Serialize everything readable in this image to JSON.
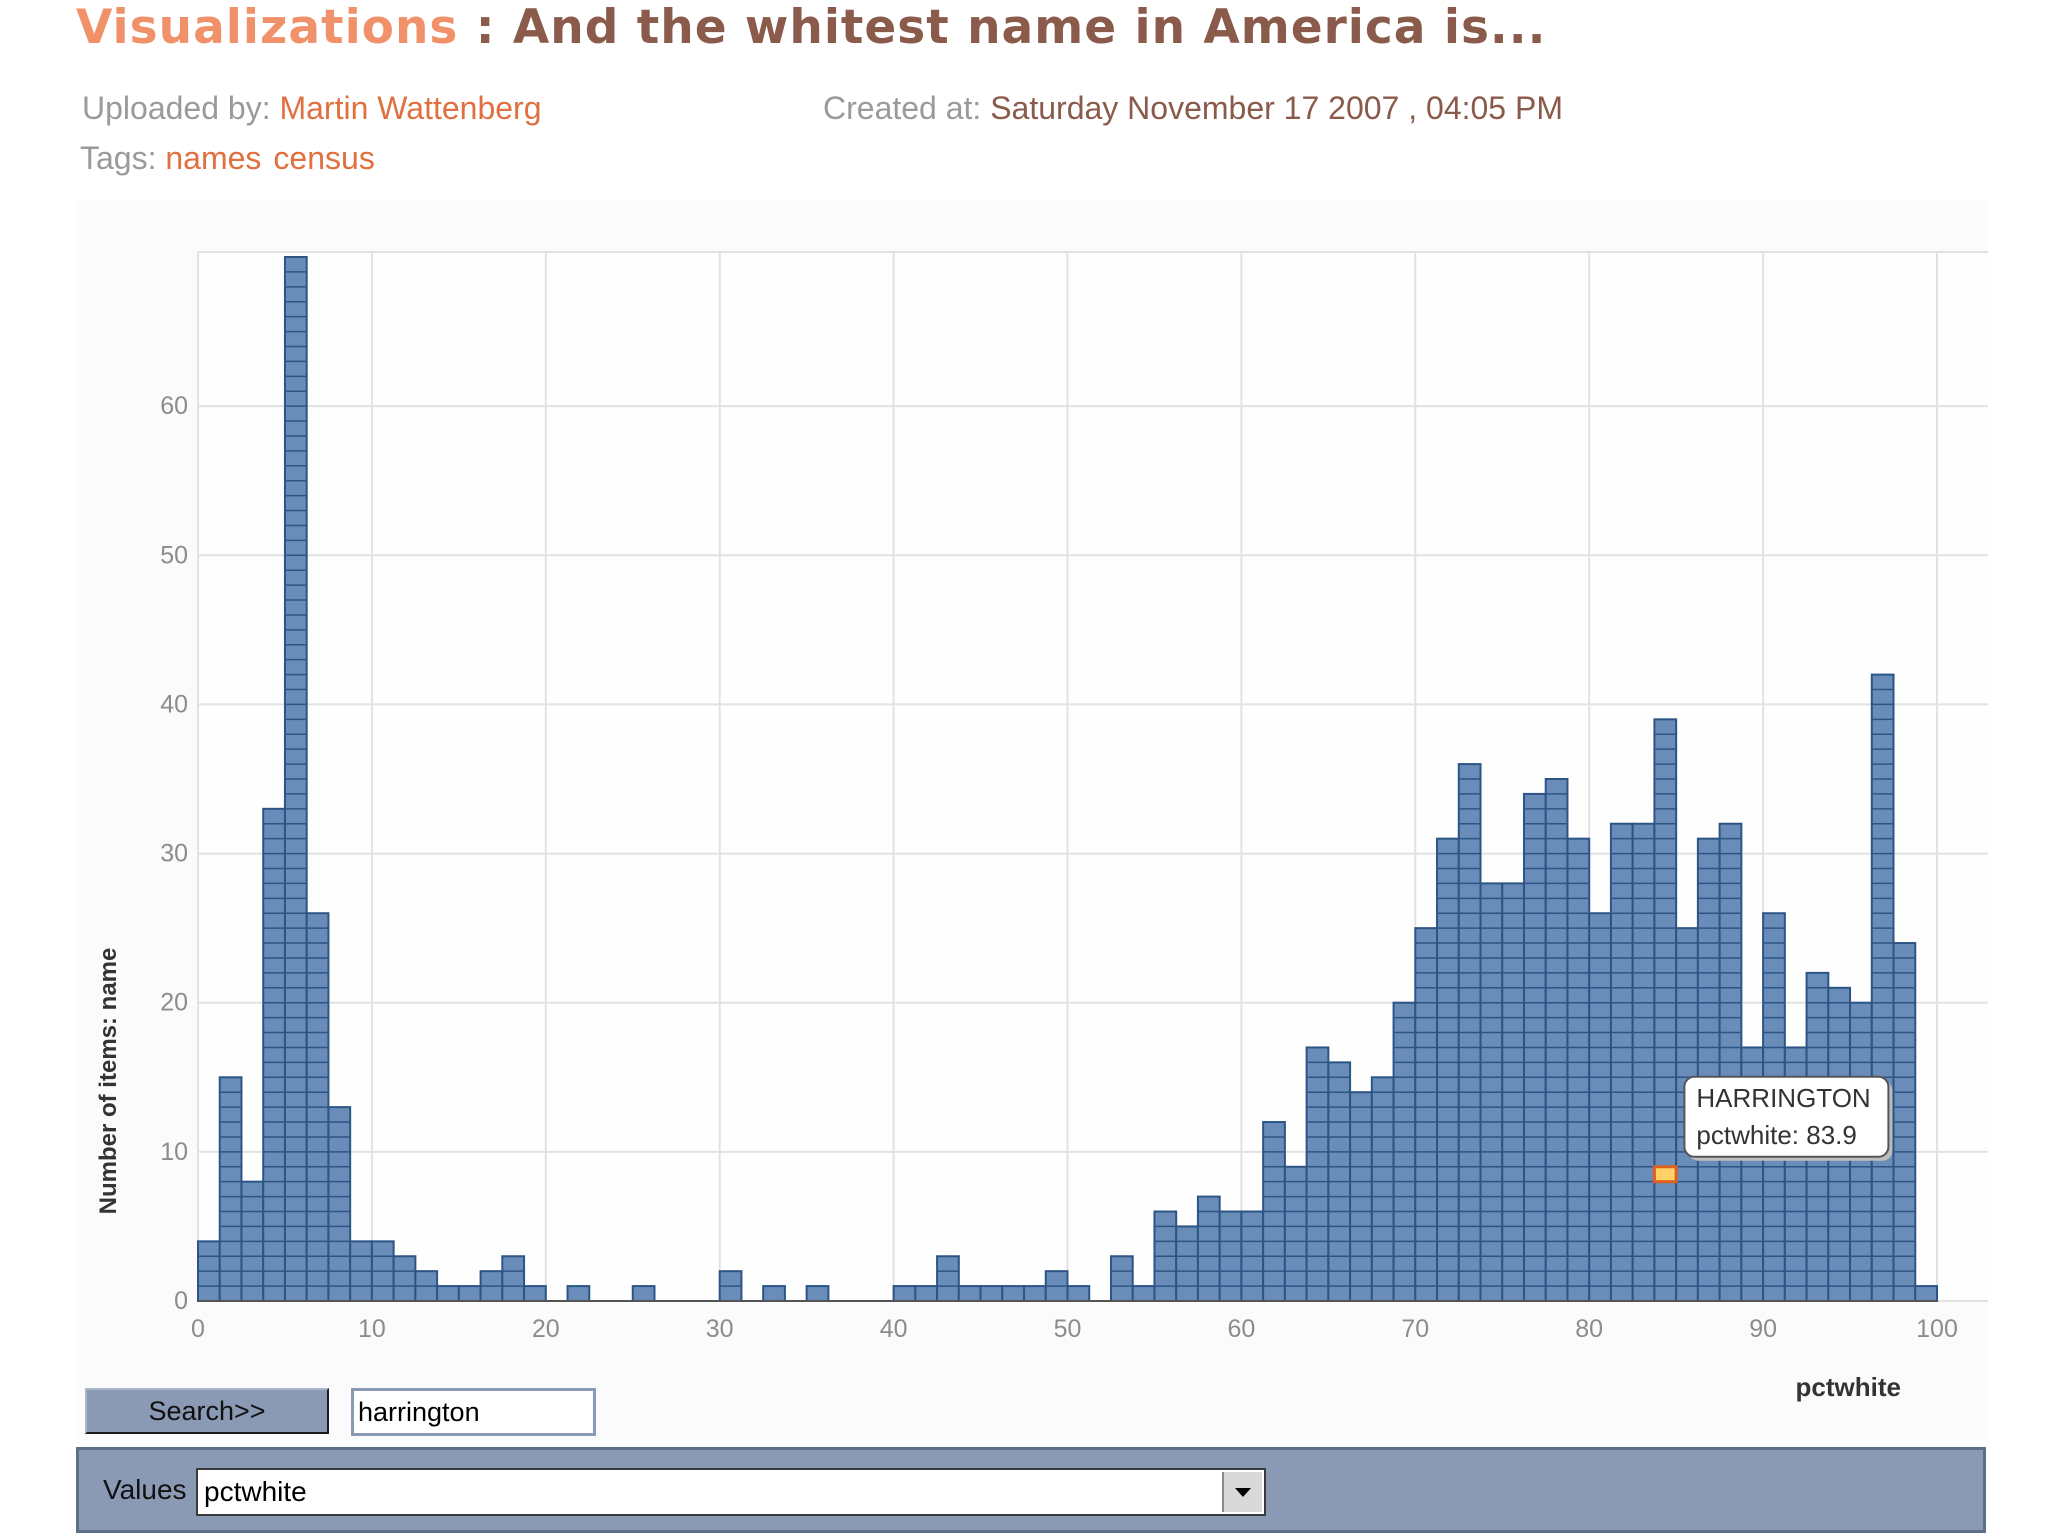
{
  "header": {
    "title_link": "Visualizations",
    "title_rest": " : And the whitest name in America is...",
    "uploaded_label": "Uploaded by:",
    "uploaded_value": "Martin Wattenberg",
    "created_label": "Created at:",
    "created_value": "Saturday November 17 2007 , 04:05 PM",
    "tags_label": "Tags:",
    "tags": [
      "names",
      "census"
    ]
  },
  "controls": {
    "search_label": "Search>>",
    "search_value": "harrington",
    "values_label": "Values",
    "values_selected": "pctwhite"
  },
  "colors": {
    "bar": "#6a8cb8",
    "bar_line": "#2c5586",
    "highlight": "#e06020",
    "highlight_fill": "#ffd166",
    "grid": "#e2e2e2",
    "axis_text": "#8c8c8c"
  },
  "chart_data": {
    "type": "bar",
    "title": "",
    "xlabel": "pctwhite",
    "ylabel": "Number of items: name",
    "xlim": [
      0,
      100
    ],
    "ylim": [
      0,
      70
    ],
    "bin_width": 1.25,
    "x_ticks": [
      0,
      10,
      20,
      30,
      40,
      50,
      60,
      70,
      80,
      90,
      100
    ],
    "y_ticks": [
      0,
      10,
      20,
      30,
      40,
      50,
      60
    ],
    "grid": true,
    "bin_starts": [
      0,
      1.25,
      2.5,
      3.75,
      5,
      6.25,
      7.5,
      8.75,
      10,
      11.25,
      12.5,
      13.75,
      15,
      16.25,
      17.5,
      18.75,
      20,
      21.25,
      22.5,
      23.75,
      25,
      26.25,
      27.5,
      28.75,
      30,
      31.25,
      32.5,
      33.75,
      35,
      36.25,
      37.5,
      38.75,
      40,
      41.25,
      42.5,
      43.75,
      45,
      46.25,
      47.5,
      48.75,
      50,
      51.25,
      52.5,
      53.75,
      55,
      56.25,
      57.5,
      58.75,
      60,
      61.25,
      62.5,
      63.75,
      65,
      66.25,
      67.5,
      68.75,
      70,
      71.25,
      72.5,
      73.75,
      75,
      76.25,
      77.5,
      78.75,
      80,
      81.25,
      82.5,
      83.75,
      85,
      86.25,
      87.5,
      88.75,
      90,
      91.25,
      92.5,
      93.75,
      95,
      96.25,
      97.5,
      98.75
    ],
    "values": [
      4,
      15,
      8,
      33,
      70,
      26,
      13,
      4,
      4,
      3,
      2,
      1,
      1,
      2,
      3,
      1,
      0,
      1,
      0,
      0,
      1,
      0,
      0,
      0,
      2,
      0,
      1,
      0,
      1,
      0,
      0,
      0,
      1,
      1,
      3,
      1,
      1,
      1,
      1,
      2,
      1,
      0,
      3,
      1,
      6,
      5,
      7,
      6,
      6,
      12,
      9,
      17,
      16,
      14,
      15,
      20,
      25,
      31,
      36,
      28,
      28,
      34,
      35,
      31,
      26,
      32,
      32,
      39,
      25,
      31,
      32,
      17,
      26,
      17,
      22,
      21,
      20,
      42,
      24,
      1
    ],
    "highlight": {
      "name": "HARRINGTON",
      "label": "pctwhite: 83.9",
      "value": 83.9,
      "level": 9
    }
  }
}
